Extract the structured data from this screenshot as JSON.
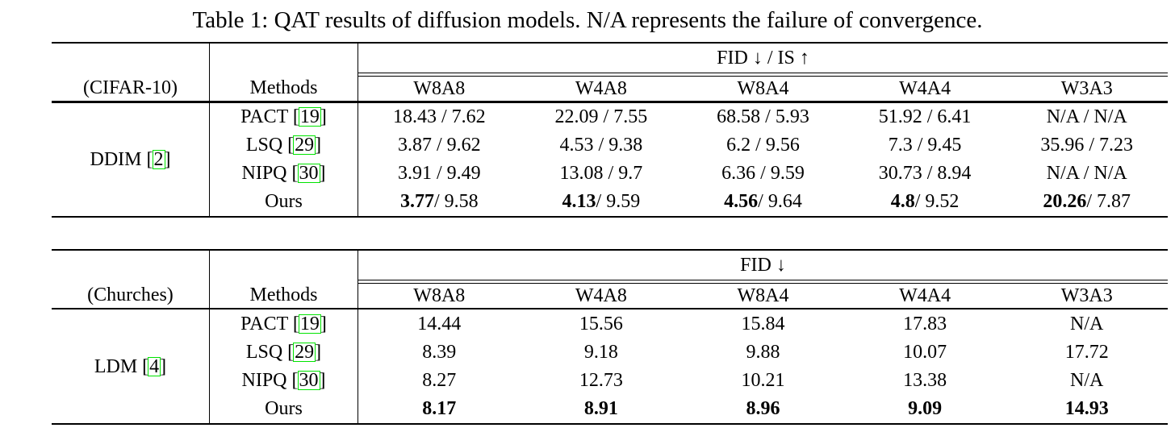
{
  "title": "Table 1: QAT results of diffusion models. N/A represents the failure of convergence.",
  "citation_box_color": "#00e400",
  "tables": [
    {
      "dataset": "(CIFAR-10)",
      "methods_header": "Methods",
      "metric": "FID ↓ / IS ↑",
      "bit_widths": [
        "W8A8",
        "W4A8",
        "W8A4",
        "W4A4",
        "W3A3"
      ],
      "model": {
        "prefix": "DDIM [",
        "cite": "2",
        "suffix": "]"
      },
      "rows": [
        {
          "method_prefix": "PACT [",
          "cite": "19",
          "suffix": "]",
          "cells": [
            [
              {
                "t": "18.43 / 7.62"
              }
            ],
            [
              {
                "t": "22.09 / 7.55"
              }
            ],
            [
              {
                "t": "68.58 / 5.93"
              }
            ],
            [
              {
                "t": "51.92 / 6.41"
              }
            ],
            [
              {
                "t": "N/A / N/A"
              }
            ]
          ]
        },
        {
          "method_prefix": "LSQ [",
          "cite": "29",
          "suffix": "]",
          "cells": [
            [
              {
                "t": "3.87 / 9.62"
              }
            ],
            [
              {
                "t": "4.53 / 9.38"
              }
            ],
            [
              {
                "t": "6.2 / 9.56"
              }
            ],
            [
              {
                "t": "7.3 / 9.45"
              }
            ],
            [
              {
                "t": "35.96 / 7.23"
              }
            ]
          ]
        },
        {
          "method_prefix": "NIPQ [",
          "cite": "30",
          "suffix": "]",
          "cells": [
            [
              {
                "t": "3.91 / 9.49"
              }
            ],
            [
              {
                "t": "13.08 / 9.7"
              }
            ],
            [
              {
                "t": "6.36 / 9.59"
              }
            ],
            [
              {
                "t": "30.73 / 8.94"
              }
            ],
            [
              {
                "t": "N/A / N/A"
              }
            ]
          ]
        },
        {
          "method_prefix": "Ours",
          "cite": "",
          "suffix": "",
          "cells": [
            [
              {
                "t": "3.77",
                "b": true
              },
              {
                "t": " / 9.58"
              }
            ],
            [
              {
                "t": "4.13",
                "b": true
              },
              {
                "t": " / 9.59"
              }
            ],
            [
              {
                "t": "4.56",
                "b": true
              },
              {
                "t": " / 9.64"
              }
            ],
            [
              {
                "t": "4.8",
                "b": true
              },
              {
                "t": " / 9.52"
              }
            ],
            [
              {
                "t": "20.26",
                "b": true
              },
              {
                "t": " / 7.87"
              }
            ]
          ]
        }
      ]
    },
    {
      "dataset": "(Churches)",
      "methods_header": "Methods",
      "metric": "FID ↓",
      "bit_widths": [
        "W8A8",
        "W4A8",
        "W8A4",
        "W4A4",
        "W3A3"
      ],
      "model": {
        "prefix": "LDM [",
        "cite": "4",
        "suffix": "]"
      },
      "rows": [
        {
          "method_prefix": "PACT [",
          "cite": "19",
          "suffix": "]",
          "cells": [
            [
              {
                "t": "14.44"
              }
            ],
            [
              {
                "t": "15.56"
              }
            ],
            [
              {
                "t": "15.84"
              }
            ],
            [
              {
                "t": "17.83"
              }
            ],
            [
              {
                "t": "N/A"
              }
            ]
          ]
        },
        {
          "method_prefix": "LSQ [",
          "cite": "29",
          "suffix": "]",
          "cells": [
            [
              {
                "t": "8.39"
              }
            ],
            [
              {
                "t": "9.18"
              }
            ],
            [
              {
                "t": "9.88"
              }
            ],
            [
              {
                "t": "10.07"
              }
            ],
            [
              {
                "t": "17.72"
              }
            ]
          ]
        },
        {
          "method_prefix": "NIPQ [",
          "cite": "30",
          "suffix": "]",
          "cells": [
            [
              {
                "t": "8.27"
              }
            ],
            [
              {
                "t": "12.73"
              }
            ],
            [
              {
                "t": "10.21"
              }
            ],
            [
              {
                "t": "13.38"
              }
            ],
            [
              {
                "t": "N/A"
              }
            ]
          ]
        },
        {
          "method_prefix": "Ours",
          "cite": "",
          "suffix": "",
          "cells": [
            [
              {
                "t": "8.17",
                "b": true
              }
            ],
            [
              {
                "t": "8.91",
                "b": true
              }
            ],
            [
              {
                "t": "8.96",
                "b": true
              }
            ],
            [
              {
                "t": "9.09",
                "b": true
              }
            ],
            [
              {
                "t": "14.93",
                "b": true
              }
            ]
          ]
        }
      ]
    }
  ]
}
